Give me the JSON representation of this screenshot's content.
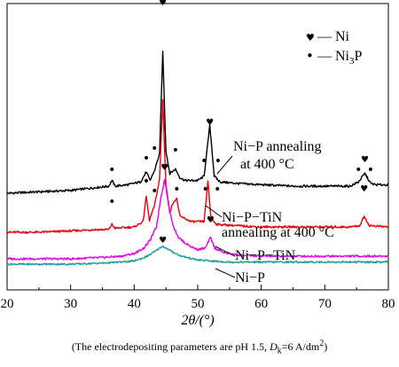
{
  "chart_data": {
    "type": "line",
    "xlabel": "2θ/(°)",
    "xlim": [
      20,
      80
    ],
    "x_ticks": [
      "20",
      "30",
      "40",
      "50",
      "60",
      "70",
      "80"
    ],
    "yaxis": "hidden",
    "series": [
      {
        "name": "Ni−P annealing at 400 °C",
        "color": "#000000",
        "x": [
          20,
          25,
          30,
          34,
          36,
          36.5,
          37,
          39,
          41,
          41.9,
          42.5,
          43.2,
          44.0,
          44.5,
          45.0,
          45.6,
          46.5,
          47.2,
          48,
          50,
          51.0,
          51.9,
          52.6,
          53.5,
          56,
          60,
          65,
          70,
          74,
          75.3,
          76.3,
          77.2,
          78,
          80
        ],
        "y": [
          0,
          1,
          2,
          4,
          5,
          9,
          5,
          6,
          8,
          15,
          9,
          16,
          28,
          100,
          30,
          14,
          17,
          11,
          9,
          9,
          12,
          48,
          12,
          8,
          7,
          6,
          5,
          5,
          5,
          8,
          14,
          7,
          6,
          6
        ]
      },
      {
        "name": "Ni−P−TiN annealing at 400 °C",
        "color": "#e8000b",
        "x": [
          20,
          25,
          30,
          34,
          36,
          36.5,
          37,
          40,
          41.4,
          41.9,
          42.4,
          43.2,
          44.0,
          44.5,
          45.0,
          45.6,
          46.2,
          46.7,
          47.2,
          49,
          51.0,
          51.6,
          52.1,
          53,
          56,
          60,
          65,
          70,
          74,
          75.5,
          76.2,
          77,
          80
        ],
        "y": [
          0,
          0,
          1,
          2,
          2,
          6,
          3,
          4,
          8,
          27,
          9,
          20,
          40,
          100,
          36,
          15,
          23,
          25,
          12,
          8,
          8,
          38,
          10,
          6,
          5,
          4,
          4,
          4,
          4,
          5,
          12,
          5,
          4
        ]
      },
      {
        "name": "Ni−P−TiN",
        "color": "#e800e8",
        "x": [
          20,
          25,
          30,
          35,
          38,
          40,
          41.5,
          42.5,
          43.5,
          44.2,
          44.8,
          45.5,
          46.2,
          47,
          48,
          49,
          50,
          51.2,
          52.0,
          52.7,
          54,
          56,
          60,
          65,
          70,
          75,
          80
        ],
        "y": [
          0,
          0,
          0,
          1,
          2,
          4,
          8,
          14,
          24,
          46,
          60,
          38,
          24,
          16,
          12,
          9,
          7,
          8,
          16,
          8,
          5,
          3,
          2,
          2,
          2,
          2,
          2
        ]
      },
      {
        "name": "Ni−P",
        "color": "#169c9c",
        "x": [
          20,
          25,
          30,
          35,
          38,
          40,
          41.5,
          42.5,
          43.5,
          44.5,
          45.3,
          46.2,
          47.2,
          48.5,
          50,
          52,
          55,
          60,
          65,
          70,
          75,
          80
        ],
        "y": [
          0,
          0,
          0,
          1,
          2,
          3,
          6,
          9,
          13,
          17,
          14,
          11,
          8,
          6,
          4,
          3,
          2,
          2,
          2,
          2,
          2,
          2
        ]
      }
    ],
    "peak_markers": {
      "ni_symbol": "♥",
      "ni3p_symbol": "•"
    },
    "annotations": [
      {
        "id": "label1",
        "lines": [
          "Ni−P annealing",
          "at 400 °C"
        ]
      },
      {
        "id": "label2",
        "lines": [
          "Ni−P−TiN",
          "annealing at 400 °C"
        ]
      },
      {
        "id": "label3",
        "lines": [
          "Ni−P−TiN"
        ]
      },
      {
        "id": "label4",
        "lines": [
          "Ni−P"
        ]
      }
    ],
    "legend": {
      "placement": "top-right",
      "entries": [
        {
          "symbol": "♥",
          "dash": "—",
          "label": "Ni"
        },
        {
          "symbol": "•",
          "dash": "—",
          "label": "Ni",
          "sub": "3",
          "suffix": "P"
        }
      ]
    }
  },
  "caption": {
    "prefix": "(The electrodepositing parameters are pH 1.5, ",
    "dk": "D",
    "dk_sub": "k",
    "mid": "=6 A/dm",
    "sup": "2",
    "suffix": ")"
  }
}
